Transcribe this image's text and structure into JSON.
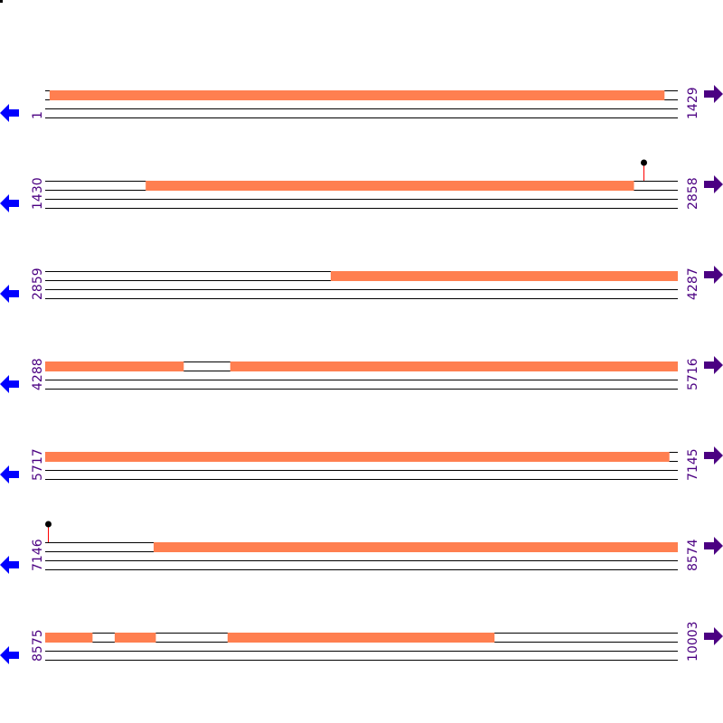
{
  "colors": {
    "feature": "#ff7f50",
    "line": "#000000",
    "label": "#4b0082",
    "left_arrow": "#0000ff",
    "right_arrow": "#4b0082",
    "pin_stem": "#ff0000",
    "pin_head": "#000000"
  },
  "icons": {
    "left": "arrow-left-icon",
    "right": "arrow-right-icon"
  },
  "bp_per_row": 1429,
  "rows": [
    {
      "start": "1",
      "end": "1429",
      "features": [
        [
          11,
          1399
        ]
      ],
      "pins": []
    },
    {
      "start": "1430",
      "end": "2858",
      "features": [
        [
          1657,
          2759
        ]
      ],
      "pins": [
        2781
      ]
    },
    {
      "start": "2859",
      "end": "4287",
      "features": [
        [
          3504,
          4287
        ]
      ],
      "pins": []
    },
    {
      "start": "4288",
      "end": "5716",
      "features": [
        [
          4288,
          4600
        ],
        [
          4706,
          5716
        ]
      ],
      "pins": []
    },
    {
      "start": "5717",
      "end": "7145",
      "features": [
        [
          5717,
          7126
        ]
      ],
      "pins": []
    },
    {
      "start": "7146",
      "end": "8574",
      "features": [
        [
          7391,
          8574
        ]
      ],
      "pins": [
        7152
      ]
    },
    {
      "start": "8575",
      "end": "10003",
      "features": [
        [
          8575,
          8681
        ],
        [
          8732,
          8824
        ],
        [
          8987,
          9589
        ]
      ],
      "pins": []
    }
  ]
}
